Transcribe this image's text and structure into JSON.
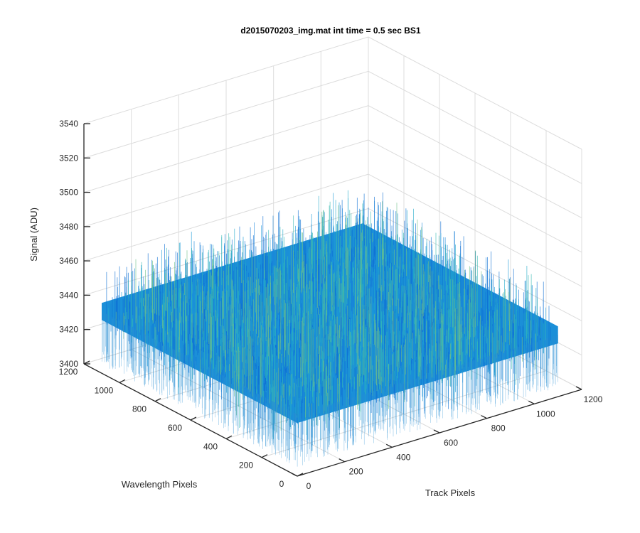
{
  "chart_data": {
    "type": "surface",
    "title": "d2015070203_img.mat int time = 0.5 sec   BS1",
    "xlabel": "Track Pixels",
    "ylabel": "Wavelength Pixels",
    "zlabel": "Signal (ADU)",
    "xlim": [
      0,
      1200
    ],
    "ylim": [
      0,
      1200
    ],
    "zlim": [
      3400,
      3540
    ],
    "x_ticks": [
      "0",
      "200",
      "400",
      "600",
      "800",
      "1000",
      "1200"
    ],
    "y_ticks": [
      "0",
      "200",
      "400",
      "600",
      "800",
      "1000",
      "1200"
    ],
    "z_ticks": [
      "3400",
      "3420",
      "3440",
      "3460",
      "3480",
      "3500",
      "3520",
      "3540"
    ],
    "surface_extent": {
      "x": [
        0,
        1100
      ],
      "y": [
        0,
        1100
      ]
    },
    "surface_level_mean": 3436,
    "surface_noise_range": [
      3405,
      3470
    ],
    "colormap": "parula",
    "surface_colors": [
      "#0d6fd4",
      "#1a86db",
      "#1c9bd9",
      "#22a9c9",
      "#37b8b2",
      "#6fbf88"
    ],
    "grid": true
  }
}
